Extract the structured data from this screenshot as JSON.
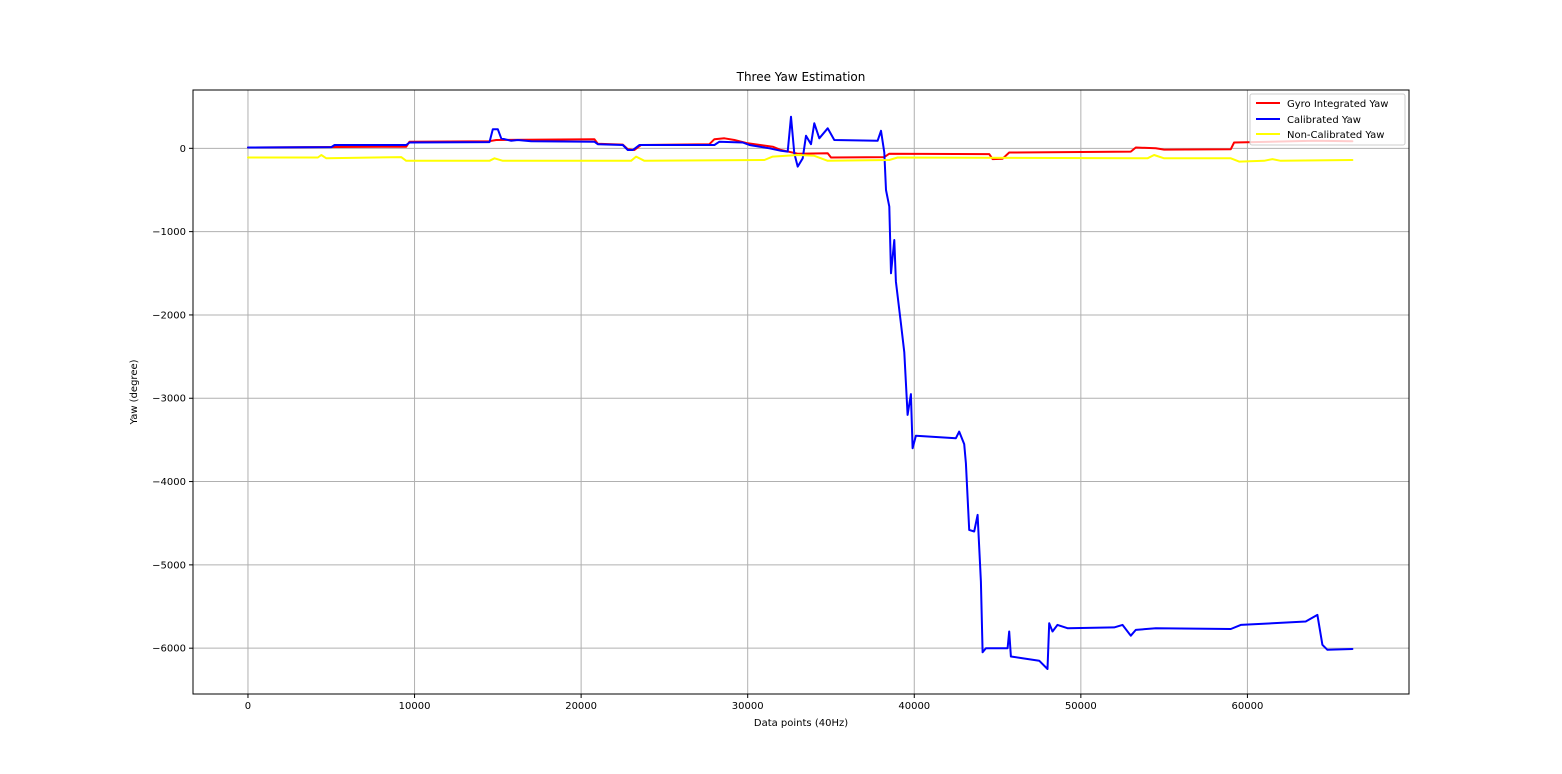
{
  "chart_data": {
    "type": "line",
    "title": "Three Yaw Estimation",
    "xlabel": "Data points (40Hz)",
    "ylabel": "Yaw (degree)",
    "xlim": [
      -3300,
      69700
    ],
    "ylim": [
      -6550,
      700
    ],
    "xticks": [
      0,
      10000,
      20000,
      30000,
      40000,
      50000,
      60000
    ],
    "yticks": [
      0,
      -1000,
      -2000,
      -3000,
      -4000,
      -5000,
      -6000
    ],
    "xtick_labels": [
      "0",
      "10000",
      "20000",
      "30000",
      "40000",
      "50000",
      "60000"
    ],
    "ytick_labels": [
      "0",
      "−1000",
      "−2000",
      "−3000",
      "−4000",
      "−5000",
      "−6000"
    ],
    "grid": true,
    "legend_position": "top-right",
    "series": [
      {
        "name": "Gyro Integrated Yaw",
        "color": "#ff0000",
        "points": [
          [
            0,
            10
          ],
          [
            4000,
            15
          ],
          [
            9500,
            20
          ],
          [
            9700,
            80
          ],
          [
            14500,
            85
          ],
          [
            14900,
            100
          ],
          [
            20800,
            110
          ],
          [
            21000,
            55
          ],
          [
            22500,
            45
          ],
          [
            22800,
            -10
          ],
          [
            23200,
            -20
          ],
          [
            23600,
            40
          ],
          [
            27700,
            50
          ],
          [
            28000,
            110
          ],
          [
            28600,
            120
          ],
          [
            29200,
            100
          ],
          [
            30000,
            60
          ],
          [
            31500,
            20
          ],
          [
            32000,
            -20
          ],
          [
            33000,
            -65
          ],
          [
            34800,
            -60
          ],
          [
            35000,
            -110
          ],
          [
            38200,
            -105
          ],
          [
            38500,
            -65
          ],
          [
            44500,
            -70
          ],
          [
            44700,
            -130
          ],
          [
            45300,
            -125
          ],
          [
            45700,
            -50
          ],
          [
            53000,
            -40
          ],
          [
            53300,
            10
          ],
          [
            54500,
            0
          ],
          [
            55000,
            -15
          ],
          [
            59000,
            -10
          ],
          [
            59200,
            70
          ],
          [
            64000,
            90
          ],
          [
            66300,
            85
          ]
        ]
      },
      {
        "name": "Calibrated Yaw",
        "color": "#0000ff",
        "points": [
          [
            0,
            10
          ],
          [
            5000,
            15
          ],
          [
            5200,
            40
          ],
          [
            9500,
            40
          ],
          [
            9700,
            70
          ],
          [
            14500,
            75
          ],
          [
            14700,
            230
          ],
          [
            15000,
            230
          ],
          [
            15200,
            120
          ],
          [
            15800,
            90
          ],
          [
            16200,
            100
          ],
          [
            17000,
            85
          ],
          [
            20800,
            80
          ],
          [
            21000,
            50
          ],
          [
            22500,
            40
          ],
          [
            22800,
            -20
          ],
          [
            23100,
            -20
          ],
          [
            23500,
            40
          ],
          [
            28000,
            40
          ],
          [
            28300,
            80
          ],
          [
            29700,
            70
          ],
          [
            30100,
            40
          ],
          [
            31300,
            0
          ],
          [
            32000,
            -30
          ],
          [
            32400,
            -40
          ],
          [
            32600,
            380
          ],
          [
            32800,
            -60
          ],
          [
            33000,
            -220
          ],
          [
            33300,
            -120
          ],
          [
            33500,
            150
          ],
          [
            33800,
            50
          ],
          [
            34000,
            300
          ],
          [
            34300,
            120
          ],
          [
            34800,
            240
          ],
          [
            35200,
            100
          ],
          [
            37800,
            90
          ],
          [
            38000,
            210
          ],
          [
            38200,
            -50
          ],
          [
            38300,
            -500
          ],
          [
            38500,
            -700
          ],
          [
            38600,
            -1500
          ],
          [
            38800,
            -1100
          ],
          [
            38900,
            -1600
          ],
          [
            39200,
            -2100
          ],
          [
            39400,
            -2450
          ],
          [
            39600,
            -3200
          ],
          [
            39800,
            -2950
          ],
          [
            39900,
            -3600
          ],
          [
            40100,
            -3450
          ],
          [
            42500,
            -3480
          ],
          [
            42700,
            -3400
          ],
          [
            43000,
            -3550
          ],
          [
            43100,
            -3780
          ],
          [
            43300,
            -4580
          ],
          [
            43600,
            -4600
          ],
          [
            43800,
            -4400
          ],
          [
            44000,
            -5200
          ],
          [
            44100,
            -6050
          ],
          [
            44300,
            -6000
          ],
          [
            45600,
            -6000
          ],
          [
            45700,
            -5800
          ],
          [
            45800,
            -6100
          ],
          [
            46500,
            -6120
          ],
          [
            47500,
            -6150
          ],
          [
            48000,
            -6250
          ],
          [
            48100,
            -5700
          ],
          [
            48300,
            -5800
          ],
          [
            48600,
            -5720
          ],
          [
            49200,
            -5760
          ],
          [
            52000,
            -5750
          ],
          [
            52500,
            -5720
          ],
          [
            53000,
            -5850
          ],
          [
            53300,
            -5780
          ],
          [
            54500,
            -5760
          ],
          [
            59000,
            -5770
          ],
          [
            59600,
            -5720
          ],
          [
            63500,
            -5680
          ],
          [
            64200,
            -5600
          ],
          [
            64500,
            -5960
          ],
          [
            64800,
            -6020
          ],
          [
            66300,
            -6010
          ]
        ]
      },
      {
        "name": "Non-Calibrated Yaw",
        "color": "#ffff00",
        "points": [
          [
            0,
            -110
          ],
          [
            4200,
            -110
          ],
          [
            4400,
            -80
          ],
          [
            4700,
            -120
          ],
          [
            9200,
            -105
          ],
          [
            9500,
            -150
          ],
          [
            14500,
            -150
          ],
          [
            14800,
            -120
          ],
          [
            15300,
            -150
          ],
          [
            23000,
            -150
          ],
          [
            23300,
            -100
          ],
          [
            23800,
            -150
          ],
          [
            31000,
            -140
          ],
          [
            31500,
            -100
          ],
          [
            33000,
            -80
          ],
          [
            34000,
            -90
          ],
          [
            34800,
            -150
          ],
          [
            38500,
            -140
          ],
          [
            39000,
            -110
          ],
          [
            54000,
            -120
          ],
          [
            54400,
            -80
          ],
          [
            55000,
            -120
          ],
          [
            59000,
            -120
          ],
          [
            59500,
            -160
          ],
          [
            61000,
            -150
          ],
          [
            61500,
            -130
          ],
          [
            62000,
            -150
          ],
          [
            66300,
            -140
          ]
        ]
      }
    ]
  }
}
